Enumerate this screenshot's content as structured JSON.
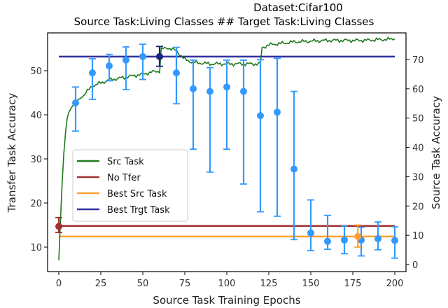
{
  "chart_data": {
    "type": "line",
    "title": "Dataset:Cifar100",
    "subtitle": "Source Task:Living Classes ## Target Task:Living Classes",
    "xlabel": "Source Task Training Epochs",
    "ylabel": "Transfer Task Accuracy",
    "ylabel_right": "Source Task Accuracy",
    "xlim": [
      -7,
      207
    ],
    "ylim": [
      5.2,
      57.5
    ],
    "ylim_right": [
      -2,
      78
    ],
    "x_ticks": [
      0,
      25,
      50,
      75,
      100,
      125,
      150,
      175,
      200
    ],
    "y_ticks": [
      10,
      20,
      30,
      40,
      50
    ],
    "y_ticks_right": [
      0,
      10,
      20,
      30,
      40,
      50,
      60,
      70
    ],
    "grid": false,
    "legend_position": "center left",
    "legend": [
      "Src Task",
      "No Tfer",
      "Best Src Task",
      "Best Trgt Task"
    ],
    "colors": {
      "src_task": "#1f7a1f",
      "no_tfer": "#a03030",
      "best_src": "#ffa030",
      "best_trgt": "#3030a0",
      "transfer": "#3399ff",
      "transfer_best": "#1a237e"
    },
    "transfer_points": {
      "x": [
        10,
        20,
        30,
        40,
        50,
        70,
        80,
        90,
        100,
        110,
        120,
        130,
        140,
        150,
        160,
        170,
        180,
        190,
        200
      ],
      "y": [
        42.7,
        49.5,
        51.1,
        52.4,
        53.2,
        49.5,
        45.9,
        45.3,
        46.3,
        45.3,
        39.8,
        40.6,
        27.7,
        13.2,
        11.3,
        11.6,
        11.6,
        11.9,
        11.5
      ],
      "y_low": [
        36.3,
        43.5,
        47.7,
        45.7,
        48.0,
        42.5,
        32.2,
        27.0,
        32.2,
        24.3,
        18.0,
        17.0,
        11.7,
        9.2,
        9.5,
        8.5,
        8.0,
        9.4,
        7.5
      ],
      "y_high": [
        46.3,
        52.7,
        53.7,
        55.4,
        56.0,
        55.3,
        52.4,
        50.7,
        52.4,
        52.4,
        52.5,
        52.8,
        45.3,
        20.7,
        17.2,
        14.8,
        14.5,
        15.7,
        14.6
      ]
    },
    "special_points": [
      {
        "name": "No Tfer",
        "x": 0,
        "y": 14.7,
        "y_low": 13.3,
        "y_high": 16.7
      },
      {
        "name": "Best Trgt Task",
        "x": 60,
        "y": 53.2,
        "y_low": 51.0,
        "y_high": 55.5
      },
      {
        "name": "Best Src Task",
        "x": 178,
        "y": 12.4,
        "y_low": 10.0,
        "y_high": 15.0
      }
    ],
    "hlines": {
      "best_trgt_task": 53.2,
      "no_tfer": 14.8,
      "best_src_task": 12.4
    },
    "src_task_curve_right_axis": {
      "x": [
        0,
        1,
        2,
        3,
        4,
        5,
        6,
        8,
        10,
        15,
        20,
        25,
        30,
        40,
        50,
        58,
        60,
        61,
        65,
        70,
        75,
        80,
        90,
        100,
        110,
        119,
        120,
        121,
        125,
        140,
        160,
        180,
        200
      ],
      "y": [
        1.5,
        15,
        28,
        38,
        45,
        50,
        52,
        54,
        55.5,
        58,
        61,
        62,
        63,
        64,
        65,
        66,
        66,
        73.5,
        74,
        73,
        70,
        69,
        68.5,
        68.5,
        68.5,
        68.5,
        68.5,
        74,
        75,
        76,
        76.5,
        76.5,
        77
      ]
    }
  }
}
